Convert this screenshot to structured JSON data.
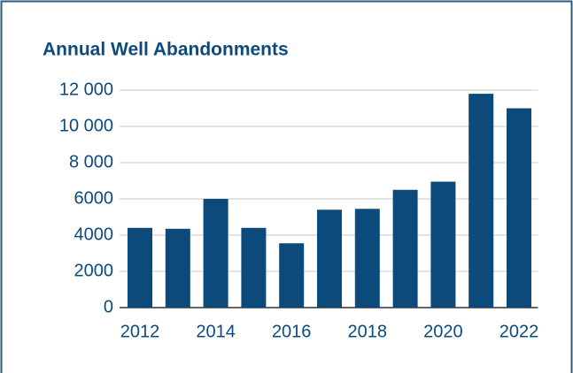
{
  "chart_data": {
    "type": "bar",
    "title": "Annual Well Abandonments",
    "categories": [
      "2012",
      null,
      "2014",
      null,
      "2016",
      null,
      "2018",
      null,
      "2020",
      null,
      "2022"
    ],
    "values": [
      4400,
      4350,
      6000,
      4400,
      3550,
      5400,
      5450,
      6500,
      6950,
      11800,
      11000
    ],
    "color": "#0b4a7a",
    "ylim": [
      0,
      12000
    ],
    "yticks": [
      0,
      2000,
      4000,
      6000,
      {
        "value": 8000,
        "label": "8 000"
      },
      {
        "value": 10000,
        "label": "10 000"
      },
      {
        "value": 12000,
        "label": "12 000"
      }
    ],
    "grid": true
  }
}
